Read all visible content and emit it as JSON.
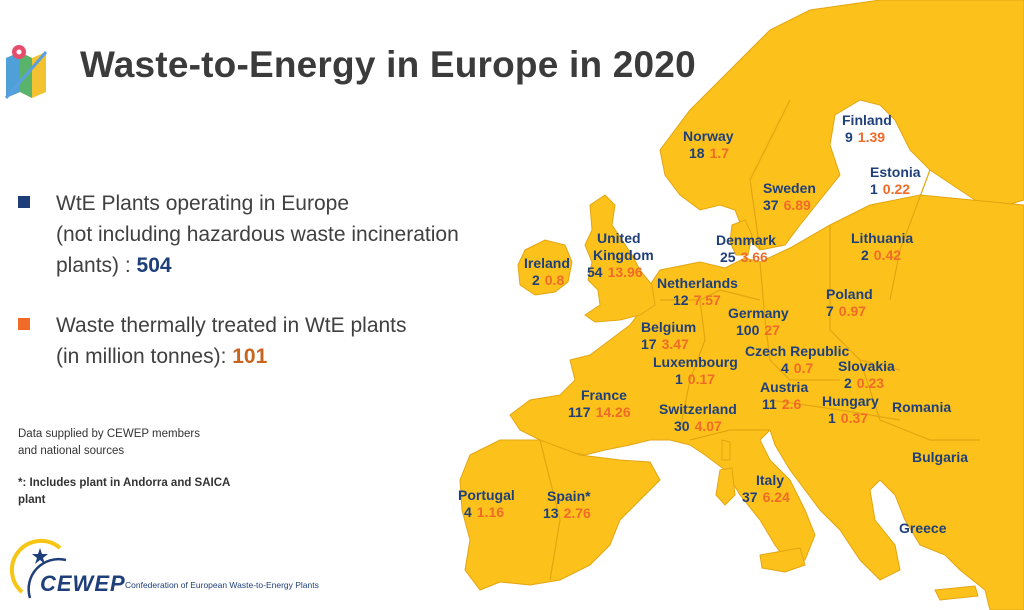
{
  "title": "Waste-to-Energy in Europe in 2020",
  "colors": {
    "land": "#fcc21b",
    "sea": "#ffffff",
    "border": "#e2a510",
    "blue": "#1f3f7a",
    "orange": "#f06a28",
    "title": "#3b3b3b"
  },
  "legend": [
    {
      "color": "#1f3f7a",
      "line1": "WtE Plants operating in Europe",
      "line2": "(not including hazardous waste incineration",
      "line3_prefix": "plants) : ",
      "value": "504"
    },
    {
      "color": "#f06a28",
      "line1": "Waste thermally treated in WtE plants",
      "line2_prefix": "(in million tonnes): ",
      "value": "101"
    }
  ],
  "notes": {
    "source_line1": "Data supplied by CEWEP members",
    "source_line2": "and national sources",
    "footnote_line1": "*: Includes plant in Andorra and SAICA",
    "footnote_line2": "plant"
  },
  "logo": {
    "name": "CEWEP",
    "subtitle": "Confederation of European Waste-to-Energy Plants"
  },
  "icons": {
    "title_icon": "map-pin-icon",
    "logo_icon": "cewep-star-arc-icon"
  },
  "countries": [
    {
      "id": "norway",
      "name": "Norway",
      "plants": "18",
      "tonnes": "1.7"
    },
    {
      "id": "finland",
      "name": "Finland",
      "plants": "9",
      "tonnes": "1.39"
    },
    {
      "id": "sweden",
      "name": "Sweden",
      "plants": "37",
      "tonnes": "6.89"
    },
    {
      "id": "estonia",
      "name": "Estonia",
      "plants": "1",
      "tonnes": "0.22"
    },
    {
      "id": "united-kingdom",
      "name_line1": "United",
      "name_line2": "Kingdom",
      "plants": "54",
      "tonnes": "13.96"
    },
    {
      "id": "denmark",
      "name": "Denmark",
      "plants": "25",
      "tonnes": "3.66"
    },
    {
      "id": "lithuania",
      "name": "Lithuania",
      "plants": "2",
      "tonnes": "0.42"
    },
    {
      "id": "ireland",
      "name": "Ireland",
      "plants": "2",
      "tonnes": "0.8"
    },
    {
      "id": "netherlands",
      "name": "Netherlands",
      "plants": "12",
      "tonnes": "7.57"
    },
    {
      "id": "poland",
      "name": "Poland",
      "plants": "7",
      "tonnes": "0.97"
    },
    {
      "id": "germany",
      "name": "Germany",
      "plants": "100",
      "tonnes": "27"
    },
    {
      "id": "belgium",
      "name": "Belgium",
      "plants": "17",
      "tonnes": "3.47"
    },
    {
      "id": "czech-republic",
      "name": "Czech Republic",
      "plants": "4",
      "tonnes": "0.7"
    },
    {
      "id": "slovakia",
      "name": "Slovakia",
      "plants": "2",
      "tonnes": "0.23"
    },
    {
      "id": "luxembourg",
      "name": "Luxembourg",
      "plants": "1",
      "tonnes": "0.17"
    },
    {
      "id": "france",
      "name": "France",
      "plants": "117",
      "tonnes": "14.26"
    },
    {
      "id": "austria",
      "name": "Austria",
      "plants": "11",
      "tonnes": "2.6"
    },
    {
      "id": "hungary",
      "name": "Hungary",
      "plants": "1",
      "tonnes": "0.37"
    },
    {
      "id": "switzerland",
      "name": "Switzerland",
      "plants": "30",
      "tonnes": "4.07"
    },
    {
      "id": "italy",
      "name": "Italy",
      "plants": "37",
      "tonnes": "6.24"
    },
    {
      "id": "portugal",
      "name": "Portugal",
      "plants": "4",
      "tonnes": "1.16"
    },
    {
      "id": "spain",
      "name": "Spain*",
      "plants": "13",
      "tonnes": "2.76"
    }
  ],
  "unlabeled_countries": [
    "Romania",
    "Bulgaria",
    "Greece"
  ]
}
